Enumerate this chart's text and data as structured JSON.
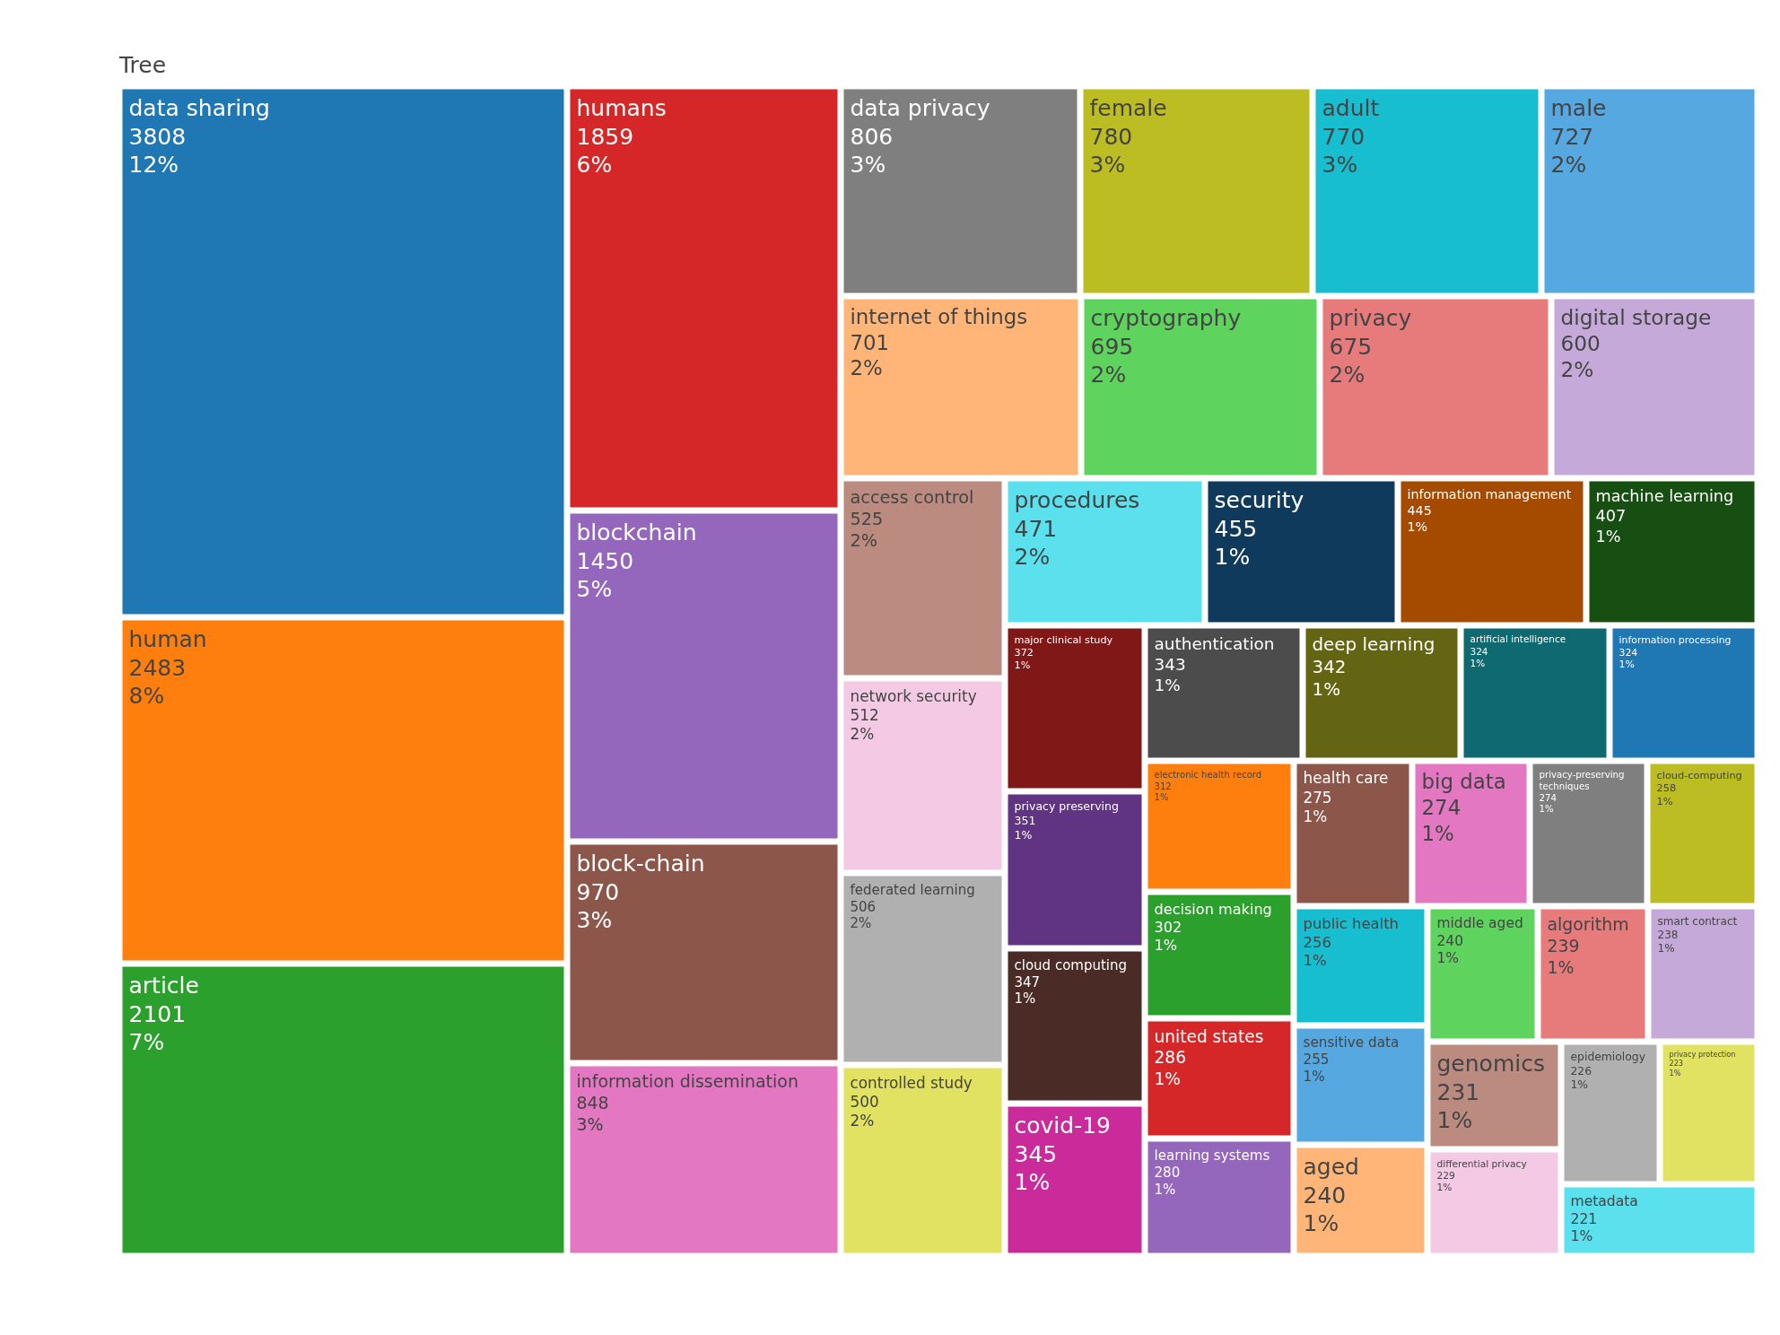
{
  "chart_data": {
    "type": "other",
    "title": "Tree",
    "categories": [
      "data sharing",
      "human",
      "article",
      "humans",
      "blockchain",
      "block-chain",
      "information dissemination",
      "data privacy",
      "female",
      "adult",
      "male",
      "internet of things",
      "cryptography",
      "privacy",
      "digital storage",
      "access control",
      "network security",
      "federated learning",
      "controlled study",
      "procedures",
      "security",
      "information management",
      "machine learning",
      "major clinical study",
      "privacy preserving",
      "cloud computing",
      "covid-19",
      "authentication",
      "deep learning",
      "artificial intelligence",
      "information processing",
      "electronic health record",
      "decision making",
      "united states",
      "learning systems",
      "health care",
      "big data",
      "privacy-preserving techniques",
      "cloud-computing",
      "public health",
      "sensitive data",
      "aged",
      "middle aged",
      "algorithm",
      "smart contract",
      "genomics",
      "differential privacy",
      "epidemiology",
      "privacy protection",
      "metadata"
    ],
    "values": [
      3808,
      2483,
      2101,
      1859,
      1450,
      970,
      848,
      806,
      780,
      770,
      727,
      701,
      695,
      675,
      600,
      525,
      512,
      506,
      500,
      471,
      455,
      445,
      407,
      372,
      351,
      347,
      345,
      343,
      342,
      324,
      324,
      312,
      302,
      286,
      280,
      275,
      274,
      274,
      258,
      256,
      255,
      240,
      240,
      239,
      238,
      231,
      229,
      226,
      223,
      221
    ],
    "colors": [
      "#1f77b4",
      "#ff7f0e",
      "#2ca02c",
      "#d62728",
      "#9467bd",
      "#8c564b",
      "#e377c2",
      "#7f7f7f",
      "#bcbd22",
      "#17becf",
      "#55a8e0",
      "#ffb577",
      "#5ed35e",
      "#e77b7b",
      "#c5aad9",
      "#bc8b80",
      "#f4c9e3",
      "#b0b0b0",
      "#e1e261",
      "#5be0ed",
      "#103a5c",
      "#a44b00",
      "#174e12",
      "#801818",
      "#613483",
      "#4a2b25",
      "#cb2a9a",
      "#4c4c4c",
      "#636512",
      "#0e6a70",
      "#1f77b4",
      "#ff7f0e",
      "#2ca02c",
      "#d62728",
      "#9467bd",
      "#8c564b",
      "#e377c2",
      "#7f7f7f",
      "#bcbd22",
      "#17becf",
      "#55a8e0",
      "#ffb577",
      "#5ed35e",
      "#e77b7b",
      "#c5aad9",
      "#bc8b80",
      "#f4c9e3",
      "#b0b0b0",
      "#e1e261",
      "#5be0ed"
    ],
    "value_labels": [
      "3808\n12%",
      "2483\n8%",
      "2101\n7%",
      "1859\n6%",
      "1450\n5%",
      "970\n3%",
      "848\n3%",
      "806\n3%",
      "780\n3%",
      "770\n3%",
      "727\n2%",
      "701\n2%",
      "695\n2%",
      "675\n2%",
      "600\n2%",
      "525\n2%",
      "512\n2%",
      "506\n2%",
      "500\n2%",
      "471\n2%",
      "455\n1%",
      "445\n1%",
      "407\n1%",
      "372\n1%",
      "351\n1%",
      "347\n1%",
      "345\n1%",
      "343\n1%",
      "342\n1%",
      "324\n1%",
      "324\n1%",
      "312\n1%",
      "302\n1%",
      "286\n1%",
      "280\n1%",
      "275\n1%",
      "274\n1%",
      "274\n1%",
      "258\n1%",
      "256\n1%",
      "255\n1%",
      "240\n1%",
      "240\n1%",
      "239\n1%",
      "238\n1%",
      "231\n1%",
      "229\n1%",
      "226\n1%",
      "223\n1%",
      "221\n1%"
    ]
  }
}
